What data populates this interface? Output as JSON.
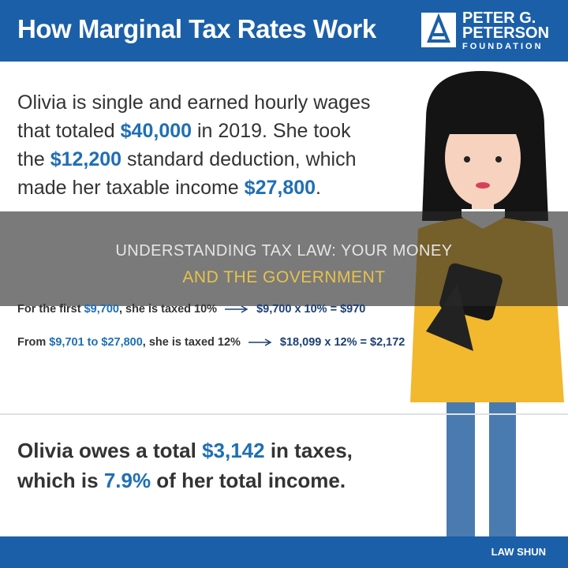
{
  "header": {
    "title": "How Marginal Tax Rates Work",
    "logo": [
      "PETER G.",
      "PETERSON",
      "FOUNDATION"
    ]
  },
  "intro": [
    "Olivia is single and earned hourly wages that totaled ",
    "$40,000",
    " in 2019. She took the ",
    "$12,200",
    " standard deduction, which made her taxable income ",
    "$27,800",
    "."
  ],
  "banner": [
    "UNDERSTANDING TAX LAW: YOUR MONEY",
    "AND THE GOVERNMENT"
  ],
  "calculations": [
    {
      "left": [
        "For the first ",
        "$9,700",
        ", she is taxed 10%"
      ],
      "right": "$9,700 x 10% = $970"
    },
    {
      "left": [
        "From ",
        "$9,701 to $27,800",
        ", she is taxed 12%"
      ],
      "right": "$18,099 x 12% = $2,172"
    }
  ],
  "summary": [
    "Olivia owes a total ",
    "$3,142",
    " in taxes, which is ",
    "7.9%",
    " of her total income."
  ],
  "footer": {
    "brand": "LAW SHUN"
  }
}
